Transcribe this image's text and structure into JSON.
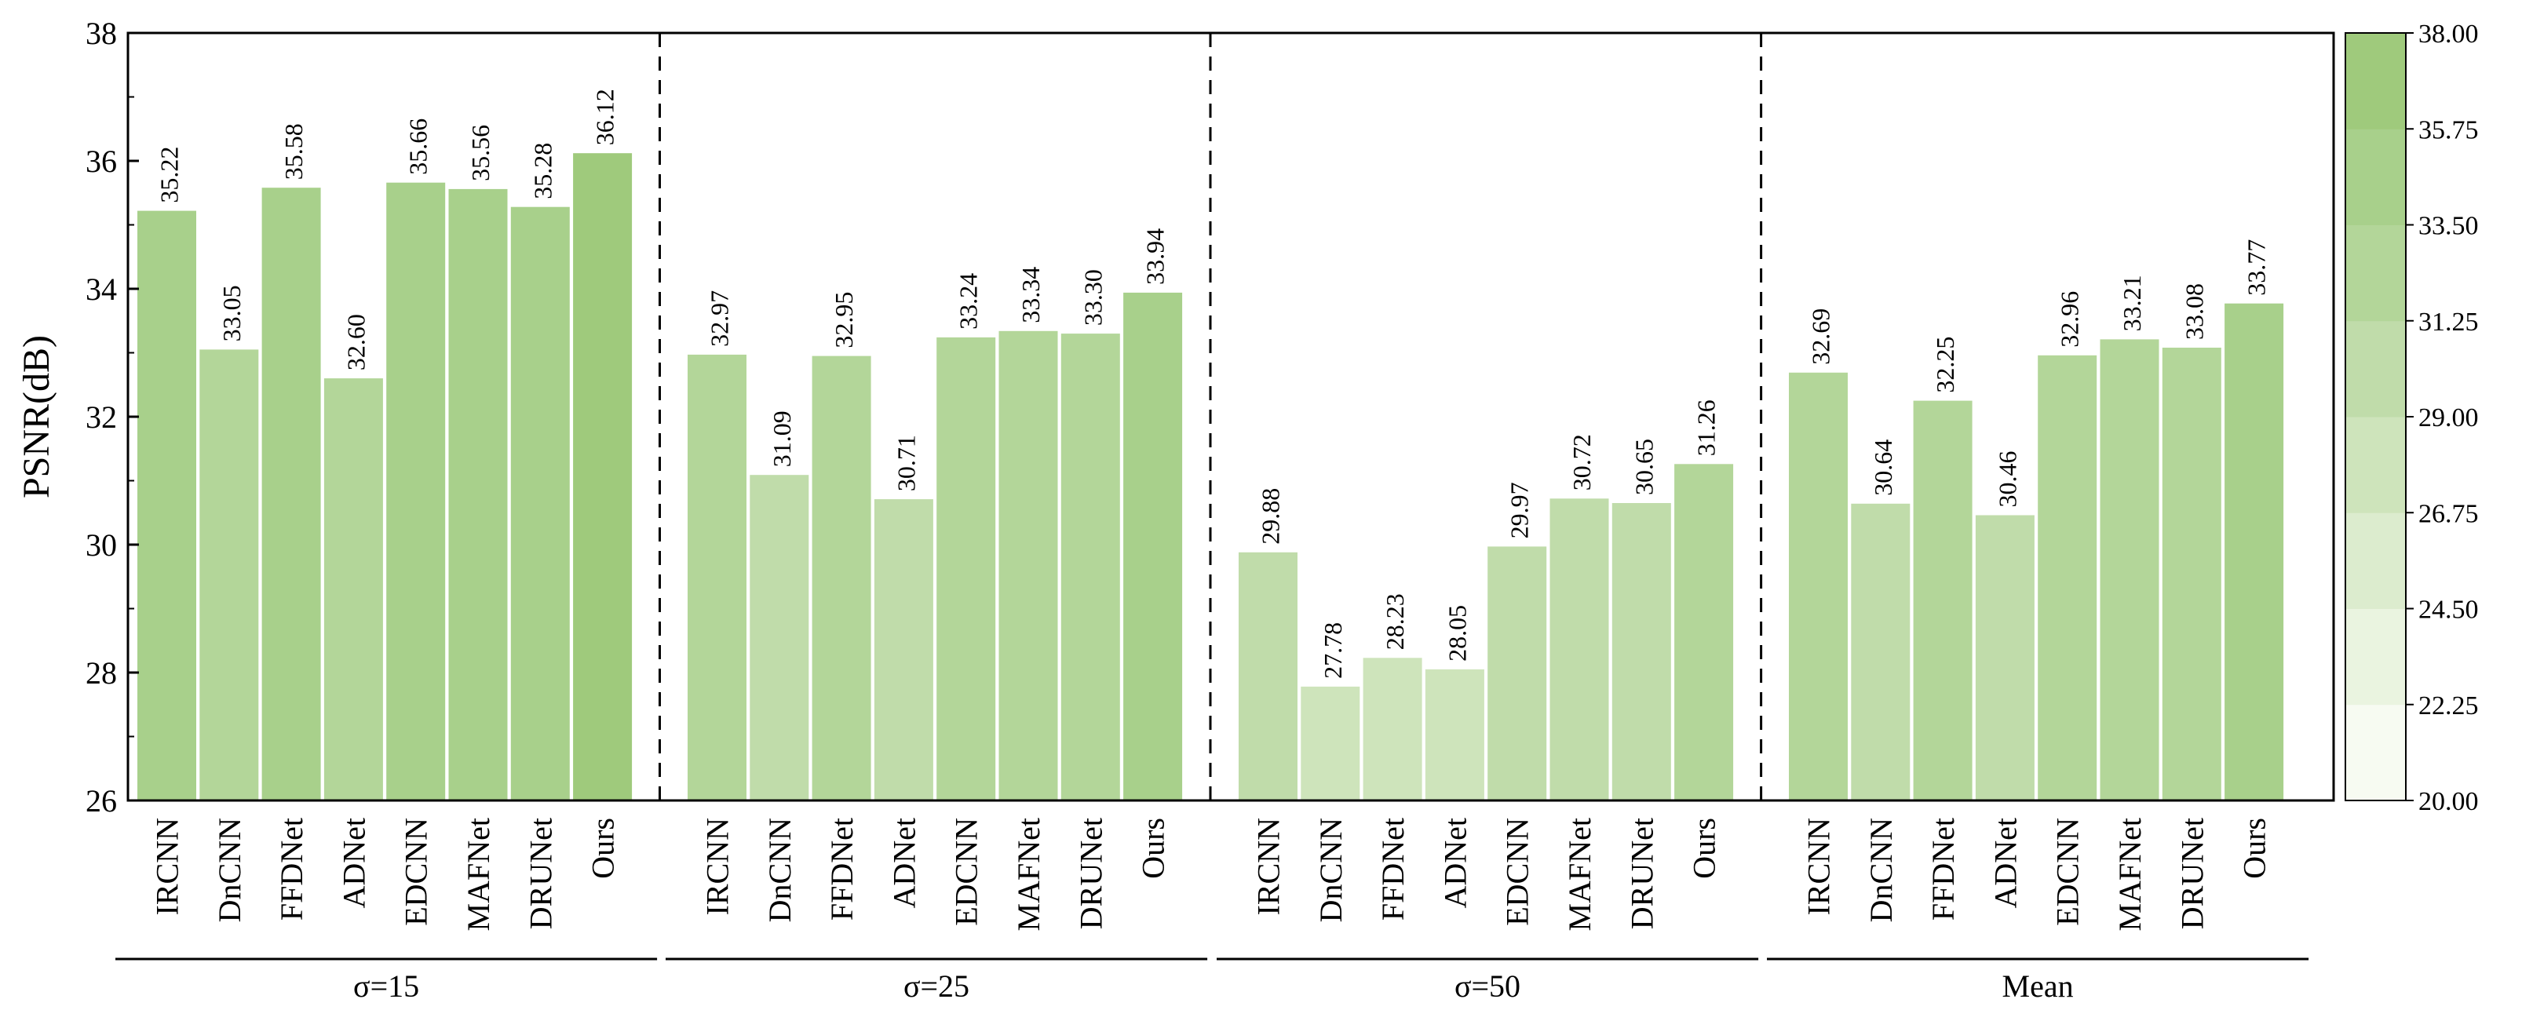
{
  "chart_data": {
    "type": "bar",
    "ylabel": "PSNR(dB)",
    "ylim": [
      26,
      38
    ],
    "yticks": [
      "26",
      "28",
      "30",
      "32",
      "34",
      "36",
      "38"
    ],
    "grid": false,
    "groups": [
      {
        "label": "σ=15",
        "categories": [
          "IRCNN",
          "DnCNN",
          "FFDNet",
          "ADNet",
          "EDCNN",
          "MAFNet",
          "DRUNet",
          "Ours"
        ],
        "values": [
          35.22,
          33.05,
          35.58,
          32.6,
          35.66,
          35.56,
          35.28,
          36.12
        ],
        "value_labels": [
          "35.22",
          "33.05",
          "35.58",
          "32.60",
          "35.66",
          "35.56",
          "35.28",
          "36.12"
        ]
      },
      {
        "label": "σ=25",
        "categories": [
          "IRCNN",
          "DnCNN",
          "FFDNet",
          "ADNet",
          "EDCNN",
          "MAFNet",
          "DRUNet",
          "Ours"
        ],
        "values": [
          32.97,
          31.09,
          32.95,
          30.71,
          33.24,
          33.34,
          33.3,
          33.94
        ],
        "value_labels": [
          "32.97",
          "31.09",
          "32.95",
          "30.71",
          "33.24",
          "33.34",
          "33.30",
          "33.94"
        ]
      },
      {
        "label": "σ=50",
        "categories": [
          "IRCNN",
          "DnCNN",
          "FFDNet",
          "ADNet",
          "EDCNN",
          "MAFNet",
          "DRUNet",
          "Ours"
        ],
        "values": [
          29.88,
          27.78,
          28.23,
          28.05,
          29.97,
          30.72,
          30.65,
          31.26
        ],
        "value_labels": [
          "29.88",
          "27.78",
          "28.23",
          "28.05",
          "29.97",
          "30.72",
          "30.65",
          "31.26"
        ]
      },
      {
        "label": "Mean",
        "categories": [
          "IRCNN",
          "DnCNN",
          "FFDNet",
          "ADNet",
          "EDCNN",
          "MAFNet",
          "DRUNet",
          "Ours"
        ],
        "values": [
          32.69,
          30.64,
          32.25,
          30.46,
          32.96,
          33.21,
          33.08,
          33.77
        ],
        "value_labels": [
          "32.69",
          "30.64",
          "32.25",
          "30.46",
          "32.96",
          "33.21",
          "33.08",
          "33.77"
        ]
      }
    ],
    "colorbar": {
      "range": [
        20,
        38
      ],
      "tick_labels": [
        "20.00",
        "22.25",
        "24.50",
        "26.75",
        "29.00",
        "31.25",
        "33.50",
        "35.75",
        "38.00"
      ],
      "colors": [
        "#f7fbf2",
        "#eaf4e0",
        "#dcecce",
        "#cee4bb",
        "#c0dcaa",
        "#b3d699",
        "#a8d08b",
        "#9fca7c"
      ]
    }
  }
}
